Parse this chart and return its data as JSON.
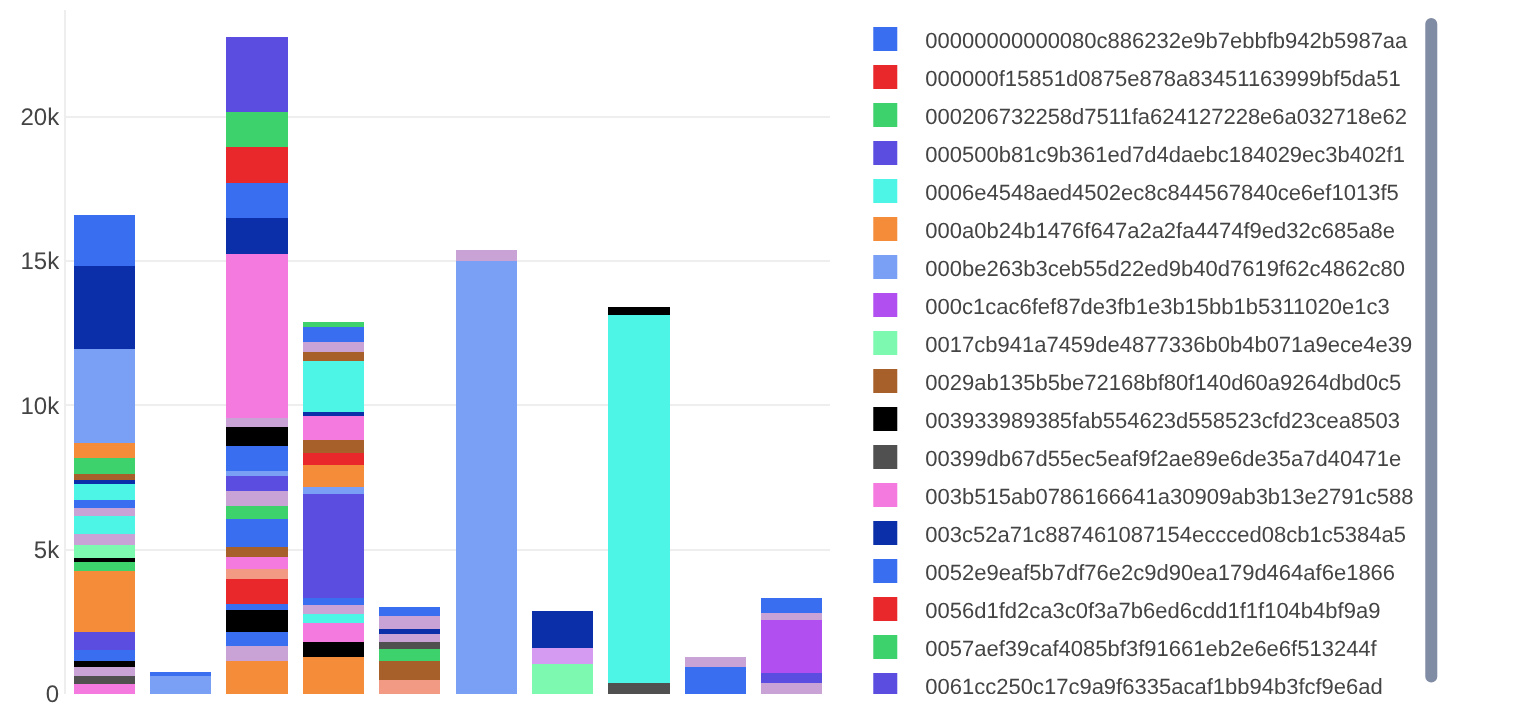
{
  "chart_data": {
    "type": "bar",
    "stacked": true,
    "categories": [
      null,
      null,
      null,
      null,
      null,
      null,
      null,
      null,
      null,
      null
    ],
    "ylim": [
      0,
      23700
    ],
    "yticks": [
      0,
      {
        "value": 5000,
        "label": "5k"
      },
      {
        "value": 10000,
        "label": "10k"
      },
      {
        "value": 15000,
        "label": "15k"
      },
      {
        "value": 20000,
        "label": "20k"
      }
    ],
    "tick_labels": "y",
    "grid": "y",
    "legend": "right",
    "series": [
      {
        "colors": [
          "#f57ae0",
          "#7aa0f5",
          "#f58c3a",
          "#f58c3a",
          "#f39a85",
          null,
          null,
          "#505050",
          "#3a6ef0",
          "#c9a3d6"
        ],
        "values": [
          330,
          650,
          1160,
          1270,
          500,
          null,
          null,
          390,
          940,
          390
        ]
      },
      {
        "colors": [
          "#505050",
          "#3a6ef0",
          "#c9a3d6",
          null,
          null,
          null,
          null,
          null,
          "#c9a3d6",
          "#5b4de0"
        ],
        "values": [
          300,
          120,
          500,
          null,
          null,
          null,
          null,
          null,
          330,
          330
        ]
      },
      {
        "colors": [
          "#c9a3d6",
          null,
          "#3a6ef0",
          null,
          null,
          null,
          null,
          null,
          null,
          null
        ],
        "values": [
          300,
          null,
          480,
          null,
          null,
          null,
          null,
          null,
          null,
          null
        ]
      },
      {
        "colors": [
          "#000000",
          null,
          "#000000",
          null,
          null,
          null,
          null,
          null,
          null,
          null
        ],
        "values": [
          200,
          null,
          760,
          null,
          null,
          null,
          null,
          null,
          null,
          null
        ]
      },
      {
        "colors": [
          null,
          null,
          "#3a6ef0",
          null,
          null,
          null,
          null,
          null,
          null,
          null
        ],
        "values": [
          null,
          null,
          220,
          null,
          null,
          null,
          null,
          null,
          null,
          null
        ]
      },
      {
        "name": "00000000000080c886232e9b7ebbfb942b5987aa",
        "color": "#3a6ef0",
        "values": [
          400,
          null,
          null,
          null,
          null,
          null,
          null,
          null,
          null,
          null
        ]
      },
      {
        "name": "000000f15851d0875e878a83451163999bf5da51",
        "color": "#e8282b",
        "values": [
          null,
          null,
          880,
          null,
          null,
          null,
          null,
          null,
          null,
          null
        ]
      },
      {
        "colors": [
          "#5b4de0",
          null,
          "#f39a85",
          null,
          null,
          null,
          null,
          null,
          null,
          null
        ],
        "values": [
          610,
          null,
          320,
          null,
          null,
          null,
          null,
          null,
          null,
          null
        ]
      },
      {
        "colors": [
          null,
          null,
          "#f57ae0",
          null,
          null,
          null,
          null,
          null,
          null,
          null
        ],
        "values": [
          null,
          null,
          440,
          null,
          null,
          null,
          null,
          null,
          null,
          null
        ]
      },
      {
        "colors": [
          null,
          null,
          "#a8602a",
          null,
          null,
          null,
          null,
          null,
          null,
          null
        ],
        "values": [
          null,
          null,
          330,
          null,
          null,
          null,
          null,
          null,
          null,
          null
        ]
      },
      {
        "colors": [
          null,
          null,
          "#3a6ef0",
          null,
          null,
          null,
          null,
          null,
          null,
          null
        ],
        "values": [
          null,
          null,
          980,
          null,
          null,
          null,
          null,
          null,
          null,
          null
        ]
      },
      {
        "name": "000206732258d7511fa624127228e6a032718e62",
        "color": "#3dd26b",
        "values": [
          null,
          null,
          440,
          null,
          null,
          null,
          null,
          null,
          null,
          null
        ]
      },
      {
        "colors": [
          null,
          null,
          "#c9a3d6",
          null,
          null,
          null,
          null,
          null,
          null,
          null
        ],
        "values": [
          null,
          null,
          540,
          null,
          null,
          null,
          null,
          null,
          null,
          null
        ]
      },
      {
        "name": "000500b81c9b361ed7d4daebc184029ec3b402f1",
        "color": "#5b4de0",
        "values": [
          null,
          null,
          550,
          null,
          null,
          null,
          null,
          null,
          null,
          null
        ]
      },
      {
        "name": "0006e4548aed4502ec8c844567840ce6ef1013f5",
        "color": "#4df5e6",
        "values": [
          null,
          null,
          null,
          null,
          null,
          null,
          null,
          12730,
          null,
          null
        ]
      },
      {
        "name": "000a0b24b1476f647a2a2fa4474f9ed32c685a8e",
        "color": "#f58c3a",
        "values": [
          2120,
          null,
          null,
          null,
          null,
          null,
          null,
          null,
          null,
          null
        ]
      },
      {
        "colors": [
          "#3dd26b",
          null,
          "#7aa0f5",
          null,
          null,
          null,
          null,
          null,
          null,
          null
        ],
        "values": [
          300,
          null,
          110,
          null,
          null,
          null,
          null,
          null,
          null,
          null
        ]
      },
      {
        "colors": [
          "#000000",
          null,
          "#3a6ef0",
          null,
          null,
          null,
          null,
          null,
          null,
          null
        ],
        "values": [
          150,
          null,
          870,
          null,
          null,
          null,
          null,
          null,
          null,
          null
        ]
      },
      {
        "colors": [
          "#7dfab0",
          null,
          "#000000",
          null,
          null,
          null,
          null,
          null,
          null,
          null
        ],
        "values": [
          450,
          null,
          660,
          null,
          null,
          null,
          null,
          null,
          null,
          null
        ]
      },
      {
        "colors": [
          "#c9a3d6",
          null,
          "#c9a3d6",
          null,
          null,
          null,
          null,
          null,
          null,
          null
        ],
        "values": [
          400,
          null,
          320,
          null,
          null,
          null,
          null,
          null,
          null,
          null
        ]
      },
      {
        "colors": [
          "#4df5e6",
          null,
          null,
          null,
          null,
          null,
          null,
          null,
          null,
          null
        ],
        "values": [
          600,
          null,
          null,
          null,
          null,
          null,
          null,
          null,
          null,
          null
        ]
      },
      {
        "colors": [
          "#c9a3d6",
          null,
          null,
          null,
          null,
          null,
          null,
          null,
          null,
          null
        ],
        "values": [
          300,
          null,
          null,
          null,
          null,
          null,
          null,
          null,
          null,
          null
        ]
      },
      {
        "colors": [
          "#3a6ef0",
          null,
          null,
          null,
          null,
          null,
          null,
          null,
          null,
          null
        ],
        "values": [
          250,
          null,
          null,
          null,
          null,
          null,
          null,
          null,
          null,
          null
        ]
      },
      {
        "colors": [
          "#4df5e6",
          null,
          null,
          null,
          null,
          null,
          null,
          null,
          null,
          null
        ],
        "values": [
          550,
          null,
          null,
          null,
          null,
          null,
          null,
          null,
          null,
          null
        ]
      },
      {
        "colors": [
          "#0a2fa8",
          null,
          null,
          null,
          null,
          null,
          null,
          null,
          null,
          null
        ],
        "values": [
          150,
          null,
          null,
          null,
          null,
          null,
          null,
          null,
          null,
          null
        ]
      },
      {
        "colors": [
          "#a8602a",
          null,
          null,
          null,
          null,
          null,
          null,
          null,
          null,
          null
        ],
        "values": [
          230,
          null,
          null,
          null,
          null,
          null,
          null,
          null,
          null,
          null
        ]
      },
      {
        "colors": [
          "#3dd26b",
          null,
          null,
          null,
          null,
          null,
          null,
          null,
          null,
          null
        ],
        "values": [
          550,
          null,
          null,
          null,
          null,
          null,
          null,
          null,
          null,
          null
        ]
      },
      {
        "colors": [
          "#f58c3a",
          null,
          null,
          null,
          null,
          null,
          null,
          null,
          null,
          null
        ],
        "values": [
          500,
          null,
          null,
          null,
          null,
          null,
          null,
          null,
          null,
          null
        ]
      },
      {
        "name": "000be263b3ceb55d22ed9b40d7619f62c4862c80",
        "color": "#7aa0f5",
        "values": [
          3270,
          null,
          null,
          null,
          null,
          15020,
          null,
          null,
          null,
          null
        ]
      },
      {
        "name": "000c1cac6fef87de3fb1e3b15bb1b5311020e1c3",
        "color": "#b14ff0",
        "values": [
          null,
          null,
          null,
          null,
          null,
          null,
          null,
          null,
          null,
          1860
        ]
      },
      {
        "name": "0017cb941a7459de4877336b0b4b071a9ece4e39",
        "color": "#7dfab0",
        "values": [
          null,
          null,
          null,
          null,
          null,
          null,
          1050,
          null,
          null,
          null
        ]
      },
      {
        "name": "0029ab135b5be72168bf80f140d60a9264dbd0c5",
        "color": "#a8602a",
        "values": [
          null,
          null,
          null,
          null,
          660,
          null,
          null,
          null,
          null,
          null
        ]
      },
      {
        "name": "003933989385fab554623d558523cfd23cea8503",
        "color": "#000000",
        "values": [
          null,
          null,
          null,
          540,
          null,
          null,
          null,
          null,
          null,
          null
        ]
      },
      {
        "colors": [
          null,
          null,
          null,
          null,
          "#3dd26b",
          null,
          null,
          null,
          null,
          null
        ],
        "values": [
          null,
          null,
          null,
          null,
          390,
          null,
          null,
          null,
          null,
          null
        ]
      },
      {
        "name": "00399db67d55ec5eaf9f2ae89e6de35a7d40471e",
        "color": "#505050",
        "values": [
          null,
          null,
          null,
          null,
          260,
          null,
          null,
          null,
          null,
          null
        ]
      },
      {
        "colors": [
          null,
          null,
          null,
          "#f57ae0",
          null,
          null,
          null,
          null,
          null,
          null
        ],
        "values": [
          null,
          null,
          null,
          660,
          null,
          null,
          null,
          null,
          null,
          null
        ]
      },
      {
        "colors": [
          null,
          null,
          null,
          "#4df5e6",
          null,
          null,
          null,
          null,
          null,
          null
        ],
        "values": [
          null,
          null,
          null,
          300,
          null,
          null,
          null,
          null,
          null,
          null
        ]
      },
      {
        "colors": [
          null,
          null,
          null,
          "#c9a3d6",
          null,
          null,
          null,
          null,
          null,
          null
        ],
        "values": [
          null,
          null,
          null,
          300,
          null,
          null,
          null,
          null,
          null,
          null
        ]
      },
      {
        "colors": [
          null,
          null,
          null,
          "#3a6ef0",
          null,
          null,
          null,
          null,
          null,
          null
        ],
        "values": [
          null,
          null,
          null,
          270,
          null,
          null,
          null,
          null,
          null,
          null
        ]
      },
      {
        "colors": [
          null,
          null,
          null,
          "#5b4de0",
          null,
          null,
          null,
          null,
          null,
          null
        ],
        "values": [
          null,
          null,
          null,
          3600,
          null,
          null,
          null,
          null,
          null,
          null
        ]
      },
      {
        "colors": [
          null,
          null,
          null,
          "#7aa0f5",
          null,
          null,
          null,
          null,
          null,
          null
        ],
        "values": [
          null,
          null,
          null,
          220,
          null,
          null,
          null,
          null,
          null,
          null
        ]
      },
      {
        "colors": [
          null,
          null,
          null,
          "#f58c3a",
          null,
          null,
          null,
          null,
          null,
          null
        ],
        "values": [
          null,
          null,
          null,
          770,
          null,
          null,
          null,
          null,
          null,
          null
        ]
      },
      {
        "colors": [
          null,
          null,
          null,
          "#e8282b",
          null,
          null,
          null,
          null,
          null,
          null
        ],
        "values": [
          null,
          null,
          null,
          430,
          null,
          null,
          null,
          null,
          null,
          null
        ]
      },
      {
        "colors": [
          null,
          null,
          null,
          "#a8602a",
          null,
          null,
          null,
          null,
          null,
          null
        ],
        "values": [
          null,
          null,
          null,
          440,
          null,
          null,
          null,
          null,
          null,
          null
        ]
      },
      {
        "name": "003b515ab0786166641a30909ab3b13e2791c588",
        "color": "#f57ae0",
        "values": [
          null,
          null,
          5680,
          870,
          null,
          null,
          null,
          null,
          null,
          null
        ]
      },
      {
        "name": "003c52a71c887461087154eccced08cb1c5384a5",
        "color": "#0a2fa8",
        "values": [
          830,
          null,
          null,
          110,
          null,
          null,
          null,
          null,
          null,
          null
        ]
      },
      {
        "colors": [
          "#0a2fa8",
          null,
          null,
          null,
          null,
          null,
          null,
          null,
          null,
          null
        ],
        "values": [
          2050,
          null,
          null,
          null,
          null,
          null,
          null,
          null,
          null,
          null
        ]
      },
      {
        "name": "0052e9eaf5b7df76e2c9d90ea179d464af6e1866",
        "color": "#3a6ef0",
        "values": [
          1770,
          null,
          null,
          null,
          null,
          null,
          null,
          null,
          null,
          null
        ]
      },
      {
        "colors": [
          null,
          null,
          "#0a2fa8",
          null,
          null,
          null,
          null,
          null,
          null,
          null
        ],
        "values": [
          null,
          null,
          1240,
          null,
          null,
          null,
          null,
          null,
          null,
          null
        ]
      },
      {
        "colors": [
          null,
          null,
          "#3a6ef0",
          null,
          null,
          null,
          null,
          null,
          null,
          null
        ],
        "values": [
          null,
          null,
          1230,
          null,
          null,
          null,
          null,
          null,
          null,
          null
        ]
      },
      {
        "name": "0056d1fd2ca3c0f3a7b6ed6cdd1f1f104b4bf9a9",
        "color": "#e8282b",
        "values": [
          null,
          null,
          1240,
          null,
          null,
          null,
          null,
          null,
          null,
          null
        ]
      },
      {
        "name": "0057aef39caf4085bf3f91661eb2e6e6f513244f",
        "color": "#3dd26b",
        "values": [
          null,
          null,
          1200,
          null,
          null,
          null,
          null,
          null,
          null,
          null
        ]
      },
      {
        "name": "0061cc250c17c9a9f6335acaf1bb94b3fcf9e6ad",
        "color": "#5b4de0",
        "values": [
          null,
          null,
          2620,
          null,
          null,
          null,
          null,
          null,
          null,
          null
        ]
      },
      {
        "colors": [
          null,
          null,
          null,
          "#4df5e6",
          "#c9a3d6",
          "#c9a3d6",
          "#d59af2",
          "#000000",
          null,
          "#c9a3d6"
        ],
        "values": [
          null,
          null,
          null,
          1750,
          330,
          370,
          540,
          300,
          null,
          210
        ]
      },
      {
        "colors": [
          null,
          null,
          null,
          "#a8602a",
          "#0a2fa8",
          null,
          "#0a2fa8",
          null,
          null,
          "#3a6ef0"
        ],
        "values": [
          null,
          null,
          null,
          330,
          110,
          null,
          1270,
          null,
          null,
          550
        ]
      },
      {
        "colors": [
          null,
          null,
          null,
          "#c9a3d6",
          "#c9a3d6",
          null,
          null,
          null,
          null,
          null
        ],
        "values": [
          null,
          null,
          null,
          320,
          440,
          null,
          null,
          null,
          null,
          null
        ]
      },
      {
        "colors": [
          null,
          null,
          null,
          "#3a6ef0",
          "#3a6ef0",
          null,
          null,
          null,
          null,
          null
        ],
        "values": [
          null,
          null,
          null,
          550,
          320,
          null,
          null,
          null,
          null,
          null
        ]
      },
      {
        "colors": [
          null,
          null,
          null,
          "#3dd26b",
          null,
          null,
          null,
          null,
          null,
          null
        ],
        "values": [
          null,
          null,
          null,
          150,
          null,
          null,
          null,
          null,
          null,
          null
        ]
      }
    ]
  }
}
